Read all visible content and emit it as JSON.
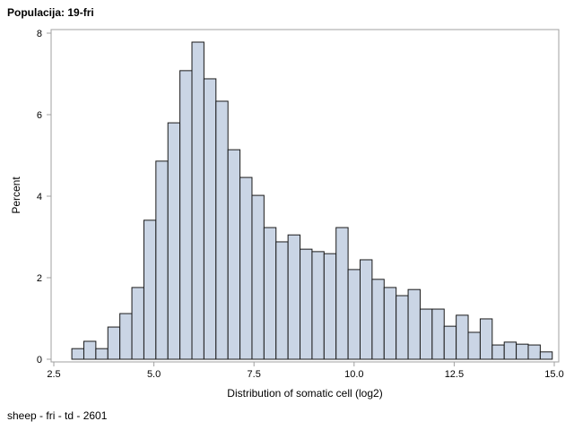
{
  "chart_data": {
    "type": "bar",
    "title": "Populacija: 19-fri",
    "footnote": "sheep - fri - td - 2601",
    "xlabel": "Distribution of somatic cell (log2)",
    "ylabel": "Percent",
    "xlim": [
      2.5,
      15.0
    ],
    "ylim": [
      0,
      8
    ],
    "xticks": [
      "2.5",
      "5.0",
      "7.5",
      "10.0",
      "12.5",
      "15.0"
    ],
    "yticks": [
      "0",
      "2",
      "4",
      "6",
      "8"
    ],
    "bin_width": 0.3,
    "bin_centers": [
      3.1,
      3.4,
      3.7,
      4.0,
      4.3,
      4.6,
      4.9,
      5.2,
      5.5,
      5.8,
      6.1,
      6.4,
      6.7,
      7.0,
      7.3,
      7.6,
      7.9,
      8.2,
      8.5,
      8.8,
      9.1,
      9.4,
      9.7,
      10.0,
      10.3,
      10.6,
      10.9,
      11.2,
      11.5,
      11.8,
      12.1,
      12.4,
      12.7,
      13.0,
      13.3,
      13.6,
      13.9,
      14.2,
      14.5,
      14.8
    ],
    "values": [
      0.26,
      0.44,
      0.26,
      0.79,
      1.12,
      1.76,
      3.41,
      4.86,
      5.8,
      7.08,
      7.78,
      6.88,
      6.33,
      5.14,
      4.46,
      4.02,
      3.23,
      2.88,
      3.05,
      2.7,
      2.64,
      2.59,
      3.23,
      2.2,
      2.44,
      1.96,
      1.76,
      1.56,
      1.71,
      1.23,
      1.23,
      0.81,
      1.08,
      0.66,
      0.99,
      0.35,
      0.42,
      0.37,
      0.35,
      0.18
    ],
    "grid": false,
    "colors": {
      "bar_fill": "#CAD5E5",
      "bar_stroke": "#1a1a1a",
      "frame": "#a0a0a0"
    }
  }
}
